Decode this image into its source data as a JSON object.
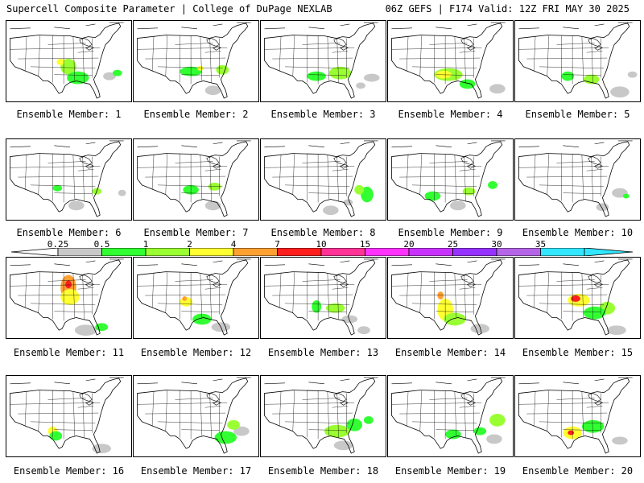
{
  "header": {
    "left": "Supercell Composite Parameter | College of DuPage NEXLAB",
    "right": "06Z GEFS | F174 Valid: 12Z FRI MAY 30 2025"
  },
  "colorbar": {
    "ticks": [
      "0.25",
      "0.5",
      "1",
      "2",
      "4",
      "7",
      "10",
      "15",
      "20",
      "25",
      "30",
      "35"
    ],
    "colors": [
      "#c8c8c8",
      "#32ff32",
      "#9aff32",
      "#ffff32",
      "#ffa032",
      "#ff1e1e",
      "#ff3296",
      "#ff32ff",
      "#c832ff",
      "#9632ff",
      "#b464e6",
      "#32e6ff"
    ],
    "left_arrow_color": "#ffffff",
    "right_arrow_color": "#32e6ff"
  },
  "panels": [
    {
      "label": "Ensemble Member: 1"
    },
    {
      "label": "Ensemble Member: 2"
    },
    {
      "label": "Ensemble Member: 3"
    },
    {
      "label": "Ensemble Member: 4"
    },
    {
      "label": "Ensemble Member: 5"
    },
    {
      "label": "Ensemble Member: 6"
    },
    {
      "label": "Ensemble Member: 7"
    },
    {
      "label": "Ensemble Member: 8"
    },
    {
      "label": "Ensemble Member: 9"
    },
    {
      "label": "Ensemble Member: 10"
    },
    {
      "label": "Ensemble Member: 11"
    },
    {
      "label": "Ensemble Member: 12"
    },
    {
      "label": "Ensemble Member: 13"
    },
    {
      "label": "Ensemble Member: 14"
    },
    {
      "label": "Ensemble Member: 15"
    },
    {
      "label": "Ensemble Member: 16"
    },
    {
      "label": "Ensemble Member: 17"
    },
    {
      "label": "Ensemble Member: 18"
    },
    {
      "label": "Ensemble Member: 19"
    },
    {
      "label": "Ensemble Member: 20"
    }
  ]
}
